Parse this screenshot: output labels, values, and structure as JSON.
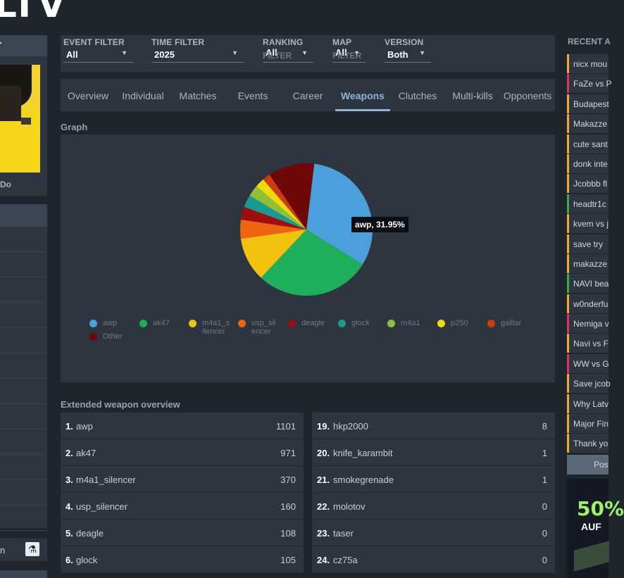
{
  "site": {
    "logo": "LTV"
  },
  "left": {
    "player_name": "Do",
    "bottom_text": "n",
    "bottom_icon": "counter-strike-icon"
  },
  "filters": [
    {
      "label": "EVENT FILTER",
      "value": "All"
    },
    {
      "label": "TIME FILTER",
      "value": "2025"
    },
    {
      "label": "RANKING",
      "value": "All",
      "sublabel": "FILTER"
    },
    {
      "label": "MAP",
      "value": "All",
      "sublabel": "FILTER"
    },
    {
      "label": "VERSION",
      "value": "Both"
    }
  ],
  "tabs": [
    "Overview",
    "Individual",
    "Matches",
    "Events",
    "Career",
    "Weapons",
    "Clutches",
    "Multi-kills",
    "Opponents"
  ],
  "active_tab": "Weapons",
  "graph": {
    "title": "Graph",
    "tooltip": "awp, 31.95%"
  },
  "chart_data": {
    "type": "pie",
    "labels": [
      "awp",
      "ak47",
      "m4a1_silencer",
      "usp_silencer",
      "deagle",
      "glock",
      "m4a1",
      "p250",
      "galilar",
      "Other"
    ],
    "values": [
      31.95,
      28.17,
      10.74,
      4.64,
      3.13,
      3.05,
      2.8,
      2.3,
      1.9,
      11.32
    ],
    "colors": [
      "#4d9fdb",
      "#1fae5c",
      "#f2c20f",
      "#ef640e",
      "#a00d0d",
      "#1a9a92",
      "#8ec03a",
      "#f0d90f",
      "#d03a0f",
      "#6e0707"
    ],
    "legend": [
      "awp",
      "ak47",
      "m4a1_s\nilencer",
      "usp_sil\nencer",
      "deagle",
      "glock",
      "m4a1",
      "p250",
      "galilar",
      "Other"
    ]
  },
  "overview": {
    "title": "Extended weapon overview",
    "left": [
      {
        "rank": "1.",
        "name": "awp",
        "count": "1101"
      },
      {
        "rank": "2.",
        "name": "ak47",
        "count": "971"
      },
      {
        "rank": "3.",
        "name": "m4a1_silencer",
        "count": "370"
      },
      {
        "rank": "4.",
        "name": "usp_silencer",
        "count": "160"
      },
      {
        "rank": "5.",
        "name": "deagle",
        "count": "108"
      },
      {
        "rank": "6.",
        "name": "glock",
        "count": "105"
      }
    ],
    "right": [
      {
        "rank": "19.",
        "name": "hkp2000",
        "count": "8"
      },
      {
        "rank": "20.",
        "name": "knife_karambit",
        "count": "1"
      },
      {
        "rank": "21.",
        "name": "smokegrenade",
        "count": "1"
      },
      {
        "rank": "22.",
        "name": "molotov",
        "count": "0"
      },
      {
        "rank": "23.",
        "name": "taser",
        "count": "0"
      },
      {
        "rank": "24.",
        "name": "cz75a",
        "count": "0"
      }
    ]
  },
  "recent": {
    "title": "RECENT A",
    "items": [
      {
        "text": "nicx mou",
        "color": "#f0a93a"
      },
      {
        "text": "FaZe vs P",
        "color": "#d4386b"
      },
      {
        "text": "Budapest",
        "color": "#f0a93a"
      },
      {
        "text": "Makazze",
        "color": "#f0a93a"
      },
      {
        "text": "cute sant",
        "color": "#f0a93a"
      },
      {
        "text": "donk inte",
        "color": "#f0a93a"
      },
      {
        "text": "Jcobbb fl",
        "color": "#f0a93a"
      },
      {
        "text": "headtr1c",
        "color": "#3ca84a"
      },
      {
        "text": "kvem vs j",
        "color": "#f0a93a"
      },
      {
        "text": "save try",
        "color": "#f0a93a"
      },
      {
        "text": "makazze",
        "color": "#f0a93a"
      },
      {
        "text": "NAVI bea",
        "color": "#3ca84a"
      },
      {
        "text": "w0nderfu",
        "color": "#f0a93a"
      },
      {
        "text": "Nemiga v",
        "color": "#d4386b"
      },
      {
        "text": "Navi vs F",
        "color": "#f0a93a"
      },
      {
        "text": "WW vs G",
        "color": "#d4386b"
      },
      {
        "text": "Save jcob",
        "color": "#f0a93a"
      },
      {
        "text": "Why Latv",
        "color": "#f0a93a"
      },
      {
        "text": "Major Fin",
        "color": "#f0a93a"
      },
      {
        "text": "Thank yo",
        "color": "#f0a93a"
      }
    ],
    "post_label": "Pos"
  },
  "ad": {
    "big": "50%",
    "small": "AUF"
  }
}
